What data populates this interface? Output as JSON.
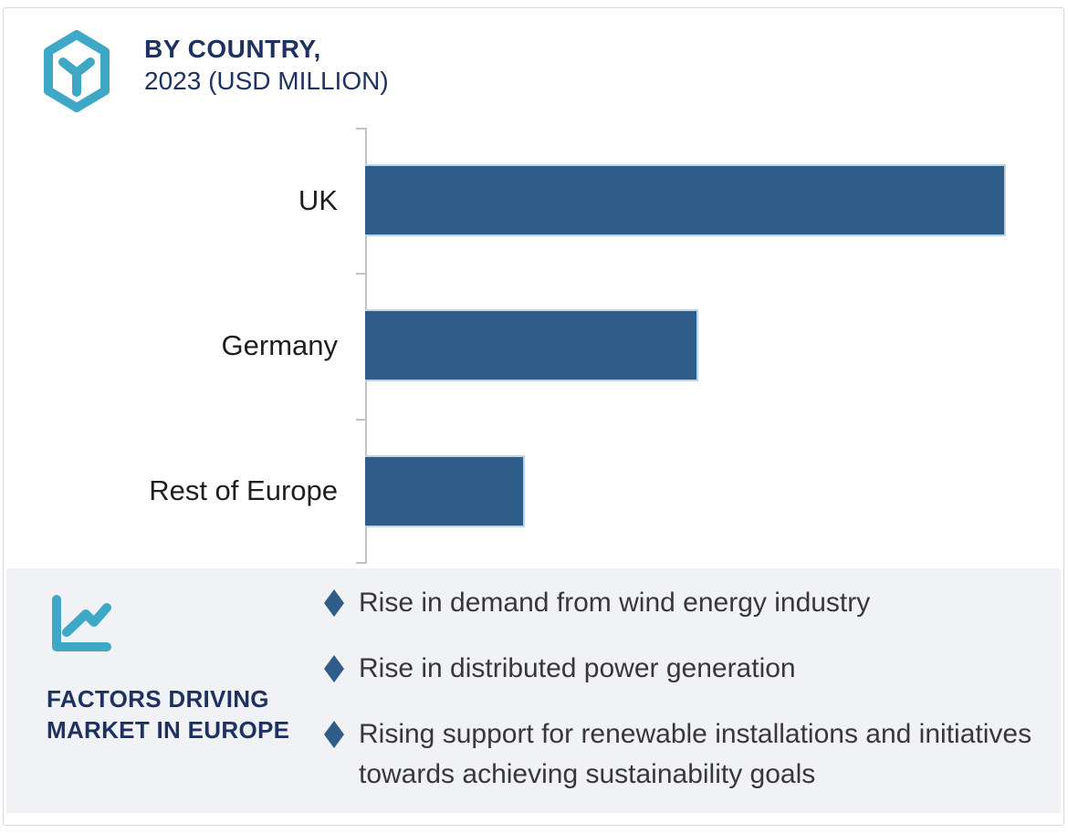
{
  "header": {
    "title_line1": "BY COUNTRY,",
    "title_line2": "2023 (USD MILLION)"
  },
  "chart_data": {
    "type": "bar",
    "orientation": "horizontal",
    "title": "BY COUNTRY, 2023 (USD MILLION)",
    "unit": "USD Million",
    "categories": [
      "UK",
      "Germany",
      "Rest of Europe"
    ],
    "values": [
      100,
      52,
      25
    ],
    "xlim": [
      0,
      109
    ],
    "xlabel": "",
    "ylabel": "",
    "grid": false,
    "legend": false,
    "axis_ticks": "category boundaries only, no numeric labels"
  },
  "factors": {
    "heading_line1": "FACTORS DRIVING",
    "heading_line2": "MARKET IN EUROPE",
    "items": [
      "Rise in demand from wind energy industry",
      "Rise in distributed power generation",
      "Rising support for renewable installations and initiatives towards achieving sustainability goals"
    ]
  },
  "icons": {
    "logo": "hexagon-y-cube-icon",
    "factors": "line-chart-icon",
    "bullet": "diamond-icon"
  },
  "colors": {
    "bar": "#2e5d8a",
    "bar_border": "#bcd4ea",
    "bullet": "#2e5d8a",
    "navy": "#1e3262",
    "teal": "#3ea8c6",
    "panel_bg": "#f1f2f6",
    "axis": "#c2c2c2",
    "text_dark": "#383838",
    "card_border": "#d9d9d9"
  }
}
